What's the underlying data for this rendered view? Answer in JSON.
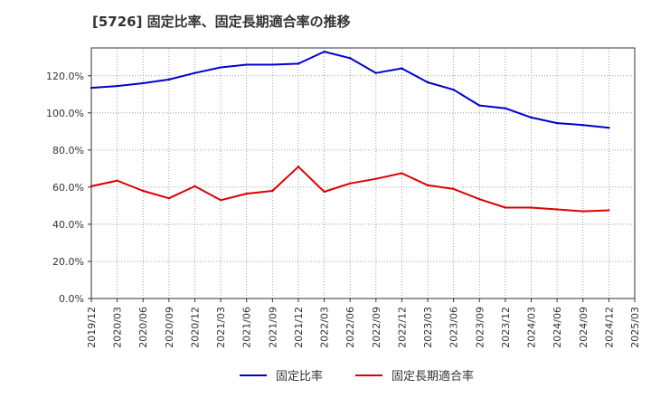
{
  "chart_data": {
    "type": "line",
    "title": "[5726]  固定比率、固定長期適合率の推移",
    "xlabel": "",
    "ylabel": "",
    "ylim": [
      0,
      135
    ],
    "y_ticks": [
      "0.0%",
      "20.0%",
      "40.0%",
      "60.0%",
      "80.0%",
      "100.0%",
      "120.0%"
    ],
    "y_tick_values": [
      0,
      20,
      40,
      60,
      80,
      100,
      120
    ],
    "categories": [
      "2019/12",
      "2020/03",
      "2020/06",
      "2020/09",
      "2020/12",
      "2021/03",
      "2021/06",
      "2021/09",
      "2021/12",
      "2022/03",
      "2022/06",
      "2022/09",
      "2022/12",
      "2023/03",
      "2023/06",
      "2023/09",
      "2023/12",
      "2024/03",
      "2024/06",
      "2024/09",
      "2024/12",
      "2025/03"
    ],
    "grid": true,
    "legend_position": "bottom",
    "series": [
      {
        "name": "固定比率",
        "color": "#0000cc",
        "values": [
          113.5,
          114.5,
          116,
          118,
          121.5,
          124.5,
          126,
          126,
          126.5,
          133,
          129.5,
          121.5,
          124,
          116.5,
          112.5,
          104,
          102.5,
          97.5,
          94.5,
          93.5,
          92,
          null
        ]
      },
      {
        "name": "固定長期適合率",
        "color": "#dd0000",
        "values": [
          60.5,
          63.5,
          58,
          54,
          60.5,
          53,
          56.5,
          58,
          71,
          57.5,
          62,
          64.5,
          67.5,
          61,
          59,
          53.5,
          49,
          49,
          48,
          47,
          47.5,
          null
        ]
      }
    ]
  }
}
